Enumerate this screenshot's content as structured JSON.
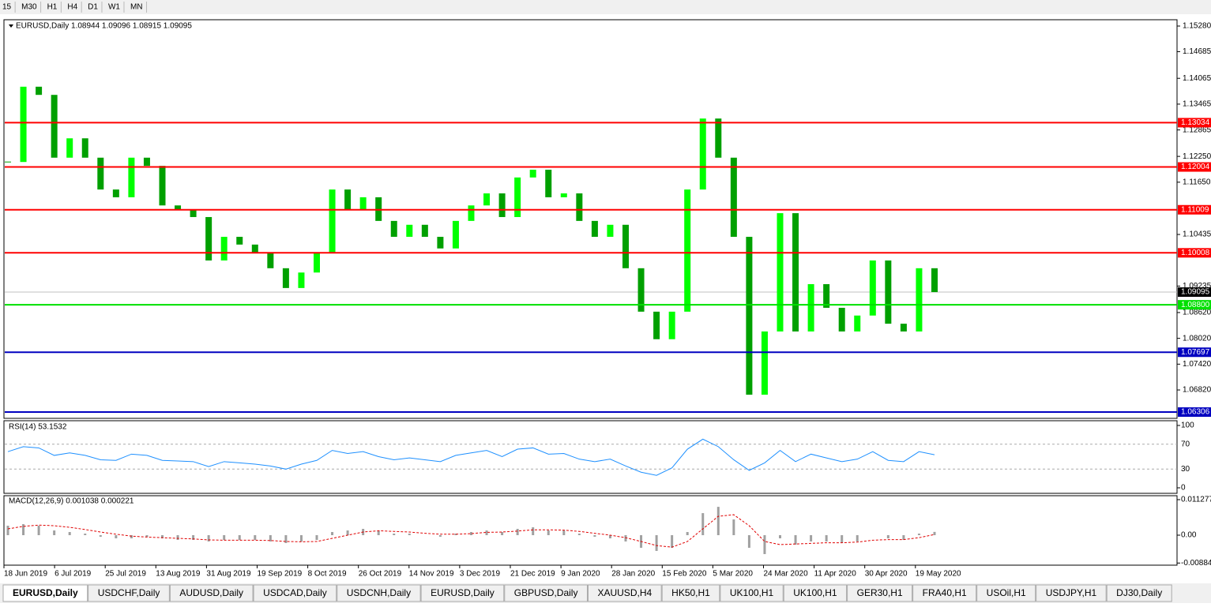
{
  "toolbar": [
    "15",
    "M30",
    "H1",
    "H4",
    "D1",
    "W1",
    "MN"
  ],
  "main": {
    "header": "EURUSD,Daily  1.08944 1.09096 1.08915 1.09095",
    "ylim": [
      1.0616,
      1.15427
    ],
    "yticks": [
      {
        "value": 1.1528,
        "label": "1.15280"
      },
      {
        "value": 1.14685,
        "label": "1.14685"
      },
      {
        "value": 1.14065,
        "label": "1.14065"
      },
      {
        "value": 1.13465,
        "label": "1.13465"
      },
      {
        "value": 1.12865,
        "label": "1.12865"
      },
      {
        "value": 1.1225,
        "label": "1.12250"
      },
      {
        "value": 1.1165,
        "label": "1.11650"
      },
      {
        "value": 1.10435,
        "label": "1.10435"
      },
      {
        "value": 1.09235,
        "label": "1.09235"
      },
      {
        "value": 1.0862,
        "label": "1.08620"
      },
      {
        "value": 1.0802,
        "label": "1.08020"
      },
      {
        "value": 1.0742,
        "label": "1.07420"
      },
      {
        "value": 1.0682,
        "label": "1.06820"
      }
    ],
    "levels": [
      {
        "value": 1.13034,
        "label": "1.13034",
        "color": "#ff0000"
      },
      {
        "value": 1.12004,
        "label": "1.12004",
        "color": "#ff0000"
      },
      {
        "value": 1.11009,
        "label": "1.11009",
        "color": "#ff0000"
      },
      {
        "value": 1.10008,
        "label": "1.10008",
        "color": "#ff0000"
      },
      {
        "value": 1.088,
        "label": "1.08800",
        "color": "#00e000"
      },
      {
        "value": 1.07697,
        "label": "1.07697",
        "color": "#0000c0"
      },
      {
        "value": 1.06306,
        "label": "1.06306",
        "color": "#0000c0"
      }
    ],
    "current": {
      "value": 1.09095,
      "label": "1.09095"
    },
    "up_color": "#00ff00",
    "down_color": "#00a000",
    "close": [
      1.1212,
      1.1387,
      1.1368,
      1.1222,
      1.1267,
      1.1222,
      1.1148,
      1.113,
      1.1222,
      1.1203,
      1.1111,
      1.1102,
      1.1084,
      1.0983,
      1.1038,
      1.102,
      1.1001,
      1.0965,
      1.0919,
      1.0955,
      1.1001,
      1.1148,
      1.1102,
      1.113,
      1.1075,
      1.1038,
      1.1066,
      1.1038,
      1.1011,
      1.1075,
      1.1111,
      1.1139,
      1.1084,
      1.1176,
      1.1194,
      1.113,
      1.1139,
      1.1075,
      1.1038,
      1.1066,
      1.0965,
      1.0864,
      1.08,
      1.0864,
      1.1148,
      1.1313,
      1.1222,
      1.1038,
      1.0671,
      1.0818,
      1.1093,
      1.0818,
      1.0928,
      1.0873,
      1.0818,
      1.0855,
      1.0983,
      1.0836,
      1.0818,
      1.0965,
      1.09095
    ]
  },
  "rsi": {
    "header": "RSI(14) 53.1532",
    "ylim": [
      0,
      100
    ],
    "yticks": [
      100,
      70,
      30,
      0
    ],
    "color": "#1e90ff",
    "values": [
      58,
      66,
      64,
      52,
      56,
      52,
      45,
      44,
      54,
      52,
      44,
      43,
      42,
      34,
      42,
      40,
      38,
      35,
      30,
      38,
      44,
      60,
      55,
      58,
      50,
      45,
      48,
      45,
      42,
      52,
      56,
      60,
      50,
      62,
      64,
      54,
      55,
      46,
      42,
      46,
      35,
      25,
      20,
      32,
      62,
      78,
      66,
      45,
      28,
      40,
      60,
      42,
      54,
      48,
      42,
      46,
      58,
      44,
      42,
      58,
      53
    ]
  },
  "macd": {
    "header": "MACD(12,26,9) 0.001038 0.000221",
    "ylim": [
      -0.00952,
      0.01228
    ],
    "yticks": [
      0.011277,
      {
        "value": 0,
        "label": "0.00"
      },
      -0.008845
    ],
    "hist": [
      0.003,
      0.0035,
      0.003,
      0.0015,
      0.001,
      0.0005,
      -0.0005,
      -0.001,
      -0.001,
      -0.0005,
      -0.001,
      -0.0015,
      -0.0015,
      -0.002,
      -0.0015,
      -0.0015,
      -0.0015,
      -0.002,
      -0.0025,
      -0.002,
      -0.0015,
      0.001,
      0.0015,
      0.002,
      0.0015,
      0.0005,
      0.0005,
      0,
      -0.0005,
      0.0005,
      0.001,
      0.0015,
      0.001,
      0.002,
      0.0025,
      0.0015,
      0.0015,
      0.0005,
      -0.0005,
      -0.001,
      -0.002,
      -0.004,
      -0.005,
      -0.004,
      0.001,
      0.007,
      0.009,
      0.005,
      -0.004,
      -0.006,
      -0.001,
      -0.003,
      -0.002,
      -0.002,
      -0.0025,
      -0.002,
      0,
      -0.001,
      -0.0015,
      0.0005,
      0.001038
    ],
    "signal": [
      0.002,
      0.0028,
      0.0032,
      0.003,
      0.0025,
      0.0018,
      0.001,
      0.0003,
      -0.0003,
      -0.0006,
      -0.0008,
      -0.001,
      -0.0012,
      -0.0015,
      -0.0016,
      -0.0016,
      -0.0016,
      -0.0017,
      -0.002,
      -0.0021,
      -0.002,
      -0.001,
      0,
      0.001,
      0.0014,
      0.0012,
      0.001,
      0.0006,
      0.0003,
      0.0003,
      0.0005,
      0.0009,
      0.001,
      0.0013,
      0.0017,
      0.0017,
      0.0016,
      0.0012,
      0.0006,
      0,
      -0.0008,
      -0.002,
      -0.0033,
      -0.0038,
      -0.002,
      0.002,
      0.006,
      0.0065,
      0.003,
      -0.002,
      -0.003,
      -0.0028,
      -0.0026,
      -0.0024,
      -0.0024,
      -0.0022,
      -0.0016,
      -0.0014,
      -0.0014,
      -0.0008,
      0.000221
    ]
  },
  "dates": [
    "18 Jun 2019",
    "6 Jul 2019",
    "25 Jul 2019",
    "13 Aug 2019",
    "31 Aug 2019",
    "19 Sep 2019",
    "8 Oct 2019",
    "26 Oct 2019",
    "14 Nov 2019",
    "3 Dec 2019",
    "21 Dec 2019",
    "9 Jan 2020",
    "28 Jan 2020",
    "15 Feb 2020",
    "5 Mar 2020",
    "24 Mar 2020",
    "11 Apr 2020",
    "30 Apr 2020",
    "19 May 2020"
  ],
  "tabs": [
    "EURUSD,Daily",
    "USDCHF,Daily",
    "AUDUSD,Daily",
    "USDCAD,Daily",
    "USDCNH,Daily",
    "EURUSD,Daily",
    "GBPUSD,Daily",
    "XAUUSD,H4",
    "HK50,H1",
    "UK100,H1",
    "UK100,H1",
    "GER30,H1",
    "FRA40,H1",
    "USOil,H1",
    "USDJPY,H1",
    "DJ30,Daily"
  ]
}
